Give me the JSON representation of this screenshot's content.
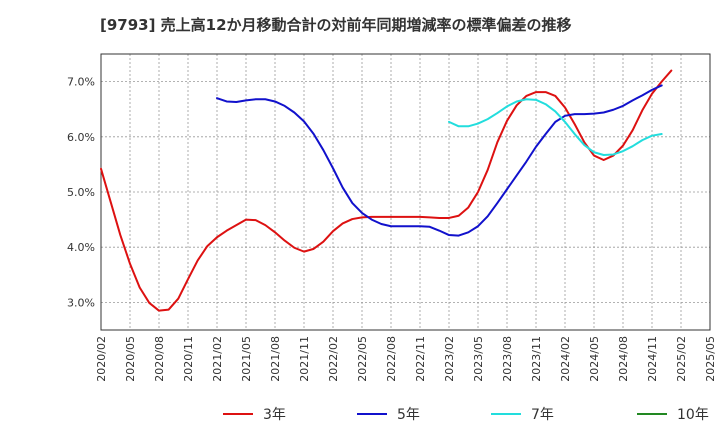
{
  "title": "[9793]  売上高12か月移動合計の対前年同期増減率の標準偏差の推移",
  "chart_data": {
    "type": "line",
    "ylim": [
      2.5,
      7.5
    ],
    "y_ticks": [
      3.0,
      4.0,
      5.0,
      6.0,
      7.0
    ],
    "y_tick_labels": [
      "3.0%",
      "4.0%",
      "5.0%",
      "6.0%",
      "7.0%"
    ],
    "x_tick_labels": [
      "2020/02",
      "2020/05",
      "2020/08",
      "2020/11",
      "2021/02",
      "2021/05",
      "2021/08",
      "2021/11",
      "2022/02",
      "2022/05",
      "2022/08",
      "2022/11",
      "2023/02",
      "2023/05",
      "2023/08",
      "2023/11",
      "2024/02",
      "2024/05",
      "2024/08",
      "2024/11",
      "2025/02",
      "2025/05"
    ],
    "grid": true,
    "legend_position": "bottom",
    "series": [
      {
        "name": "3年",
        "color": "#dd1111",
        "start_index": 0,
        "values": [
          5.42,
          4.82,
          4.22,
          3.7,
          3.27,
          2.99,
          2.85,
          2.87,
          3.07,
          3.42,
          3.76,
          4.02,
          4.18,
          4.3,
          4.4,
          4.5,
          4.49,
          4.4,
          4.27,
          4.12,
          3.99,
          3.92,
          3.97,
          4.1,
          4.29,
          4.43,
          4.51,
          4.54,
          4.55,
          4.55,
          4.55,
          4.55,
          4.55,
          4.55,
          4.54,
          4.53,
          4.53,
          4.57,
          4.72,
          5.0,
          5.4,
          5.9,
          6.29,
          6.57,
          6.74,
          6.81,
          6.81,
          6.74,
          6.53,
          6.23,
          5.9,
          5.66,
          5.58,
          5.66,
          5.84,
          6.12,
          6.48,
          6.78,
          7.0,
          7.2
        ]
      },
      {
        "name": "5年",
        "color": "#1111cc",
        "start_index": 12,
        "values": [
          6.7,
          6.64,
          6.63,
          6.66,
          6.68,
          6.68,
          6.64,
          6.56,
          6.44,
          6.28,
          6.05,
          5.76,
          5.43,
          5.08,
          4.8,
          4.62,
          4.5,
          4.42,
          4.38,
          4.38,
          4.38,
          4.38,
          4.37,
          4.3,
          4.22,
          4.21,
          4.27,
          4.38,
          4.56,
          4.8,
          5.05,
          5.3,
          5.55,
          5.82,
          6.05,
          6.27,
          6.38,
          6.41,
          6.41,
          6.42,
          6.44,
          6.49,
          6.56,
          6.66,
          6.75,
          6.85,
          6.93
        ]
      },
      {
        "name": "7年",
        "color": "#22dddd",
        "start_index": 36,
        "values": [
          6.27,
          6.19,
          6.19,
          6.24,
          6.32,
          6.43,
          6.55,
          6.64,
          6.68,
          6.67,
          6.59,
          6.46,
          6.27,
          6.05,
          5.85,
          5.72,
          5.67,
          5.68,
          5.74,
          5.83,
          5.94,
          6.02,
          6.05
        ]
      },
      {
        "name": "10年",
        "color": "#228822",
        "start_index": 0,
        "values": []
      }
    ]
  }
}
